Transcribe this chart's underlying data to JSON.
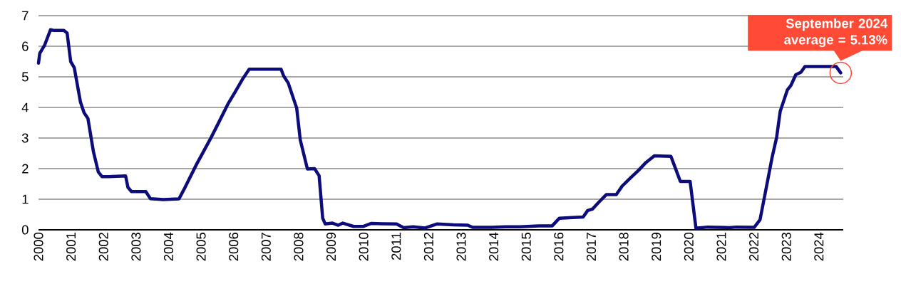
{
  "chart_data": {
    "type": "line",
    "x": [
      2000.0,
      2000.04,
      2000.19,
      2000.37,
      2000.46,
      2000.78,
      2000.88,
      2000.99,
      2001.1,
      2001.29,
      2001.4,
      2001.52,
      2001.69,
      2001.84,
      2001.95,
      2002.16,
      2002.68,
      2002.75,
      2002.86,
      2003.3,
      2003.44,
      2003.84,
      2004.32,
      2004.47,
      2004.87,
      2005.05,
      2005.31,
      2005.53,
      2005.82,
      2006.04,
      2006.29,
      2006.48,
      2007.46,
      2007.54,
      2007.68,
      2007.94,
      2008.05,
      2008.27,
      2008.49,
      2008.63,
      2008.74,
      2008.82,
      2009.04,
      2009.22,
      2009.36,
      2009.69,
      2009.98,
      2010.24,
      2010.57,
      2011.01,
      2011.23,
      2011.52,
      2011.89,
      2012.25,
      2012.76,
      2013.2,
      2013.35,
      2013.93,
      2014.37,
      2014.81,
      2015.39,
      2015.8,
      2016.02,
      2016.42,
      2016.75,
      2016.89,
      2017.04,
      2017.22,
      2017.46,
      2017.77,
      2017.95,
      2018.21,
      2018.46,
      2018.68,
      2018.94,
      2019.45,
      2019.56,
      2019.74,
      2020.04,
      2020.22,
      2020.58,
      2021.24,
      2021.46,
      2022.01,
      2022.19,
      2022.37,
      2022.56,
      2022.7,
      2022.81,
      2023.03,
      2023.14,
      2023.29,
      2023.45,
      2023.57,
      2024.53,
      2024.67
    ],
    "series": [
      {
        "color": "#0c0c7a",
        "values": [
          5.45,
          5.77,
          6.04,
          6.54,
          6.52,
          6.52,
          6.43,
          5.5,
          5.3,
          4.18,
          3.83,
          3.64,
          2.55,
          1.89,
          1.74,
          1.74,
          1.76,
          1.39,
          1.25,
          1.25,
          1.02,
          0.99,
          1.01,
          1.31,
          2.16,
          2.51,
          3.02,
          3.48,
          4.1,
          4.49,
          4.95,
          5.25,
          5.25,
          5.03,
          4.8,
          3.98,
          2.94,
          1.99,
          2.0,
          1.77,
          0.38,
          0.19,
          0.22,
          0.15,
          0.22,
          0.11,
          0.11,
          0.21,
          0.2,
          0.19,
          0.07,
          0.1,
          0.06,
          0.19,
          0.16,
          0.15,
          0.08,
          0.08,
          0.1,
          0.1,
          0.13,
          0.13,
          0.38,
          0.4,
          0.42,
          0.63,
          0.68,
          0.89,
          1.15,
          1.15,
          1.43,
          1.7,
          1.95,
          2.2,
          2.42,
          2.4,
          2.09,
          1.58,
          1.58,
          0.05,
          0.09,
          0.07,
          0.09,
          0.08,
          0.33,
          1.31,
          2.36,
          3.02,
          3.87,
          4.57,
          4.72,
          5.07,
          5.15,
          5.34,
          5.34,
          5.13
        ]
      }
    ],
    "xlim": [
      2000,
      2024.75
    ],
    "xticks": [
      2000,
      2001,
      2002,
      2003,
      2004,
      2005,
      2006,
      2007,
      2008,
      2009,
      2010,
      2011,
      2012,
      2013,
      2014,
      2015,
      2016,
      2017,
      2018,
      2019,
      2020,
      2021,
      2022,
      2023,
      2024
    ],
    "ylim": [
      0,
      7
    ],
    "yticks": [
      0,
      1,
      2,
      3,
      4,
      5,
      6,
      7
    ],
    "grid": "y",
    "annotations": [
      {
        "text": "September 2024 average = 5.13%",
        "x": 2024.67,
        "y": 5.13
      }
    ]
  }
}
